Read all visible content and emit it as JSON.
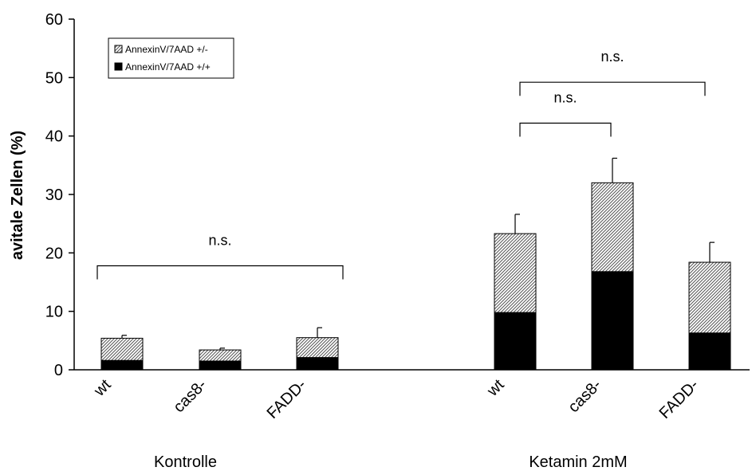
{
  "chart_data": {
    "type": "bar",
    "stacked": true,
    "ylabel": "avitale Zellen (%)",
    "ylim": [
      0,
      60
    ],
    "yticks": [
      0,
      10,
      20,
      30,
      40,
      50,
      60
    ],
    "grid": false,
    "legend_position": "top-left",
    "groups": [
      {
        "label": "Kontrolle",
        "categories": [
          "wt",
          "cas8-",
          "FADD-"
        ]
      },
      {
        "label": "Ketamin 2mM",
        "categories": [
          "wt",
          "cas8-",
          "FADD-"
        ]
      }
    ],
    "series": [
      {
        "name": "AnnexinV/7AAD +/+",
        "pattern": "solid",
        "color": "#000000",
        "values": [
          1.6,
          1.5,
          2.1,
          9.8,
          16.8,
          6.3
        ]
      },
      {
        "name": "AnnexinV/7AAD +/-",
        "pattern": "hatched",
        "color": "#b8b8b8",
        "values": [
          3.8,
          1.9,
          3.4,
          13.5,
          15.2,
          12.1
        ]
      }
    ],
    "totals": [
      5.4,
      3.4,
      5.5,
      23.3,
      32.0,
      18.4
    ],
    "errors": [
      0.5,
      0.3,
      1.7,
      3.3,
      4.2,
      3.4
    ],
    "annotations": [
      {
        "text": "n.s.",
        "from": 0,
        "to": 2,
        "y": 17.8
      },
      {
        "text": "n.s.",
        "from": 3,
        "to": 4,
        "y": 42.2
      },
      {
        "text": "n.s.",
        "from": 3,
        "to": 5,
        "y": 49.2
      }
    ]
  }
}
